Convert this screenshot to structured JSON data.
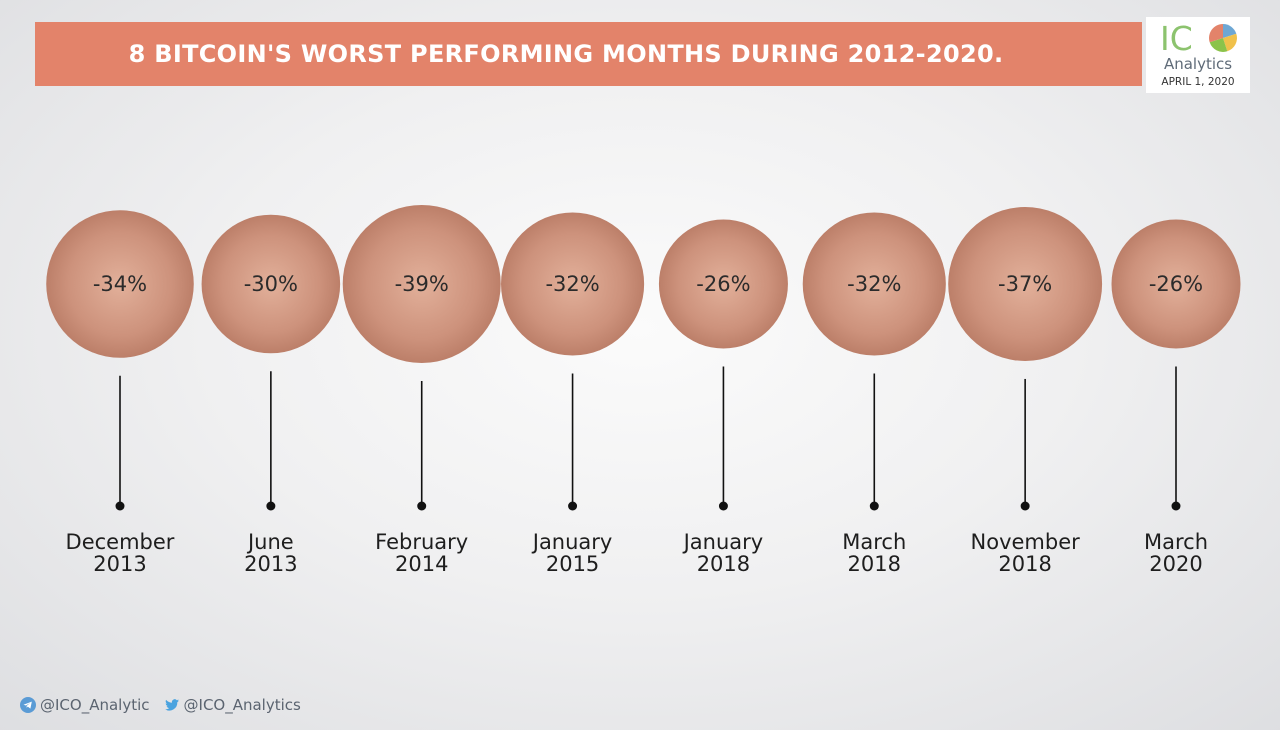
{
  "header": {
    "title": "8 BITCOIN'S WORST PERFORMING MONTHS DURING 2012-2020."
  },
  "logo": {
    "mark_text": "IC",
    "wordmark": "Analytics",
    "date": "APRIL 1, 2020"
  },
  "chart_data": {
    "type": "bubble",
    "title": "8 BITCOIN'S WORST PERFORMING MONTHS DURING 2012-2020.",
    "categories": [
      "December 2013",
      "June 2013",
      "February 2014",
      "January 2015",
      "January 2018",
      "March 2018",
      "November 2018",
      "March 2020"
    ],
    "values": [
      -34,
      -30,
      -39,
      -32,
      -26,
      -32,
      -37,
      -26
    ],
    "labels": [
      "-34%",
      "-30%",
      "-39%",
      "-32%",
      "-26%",
      "-32%",
      "-37%",
      "-26%"
    ],
    "months": [
      "December",
      "June",
      "February",
      "January",
      "January",
      "March",
      "November",
      "March"
    ],
    "years": [
      "2013",
      "2013",
      "2014",
      "2015",
      "2018",
      "2018",
      "2018",
      "2020"
    ],
    "unit": "%",
    "grid": false,
    "legend": "none",
    "colors": {
      "bubble": "#c98a74",
      "bubble_highlight": "#e2b09a",
      "stem": "#111111"
    }
  },
  "footer": {
    "telegram_handle": "@ICO_Analytic",
    "twitter_handle": "@ICO_Analytics",
    "icons": [
      "telegram-icon",
      "twitter-icon"
    ]
  }
}
